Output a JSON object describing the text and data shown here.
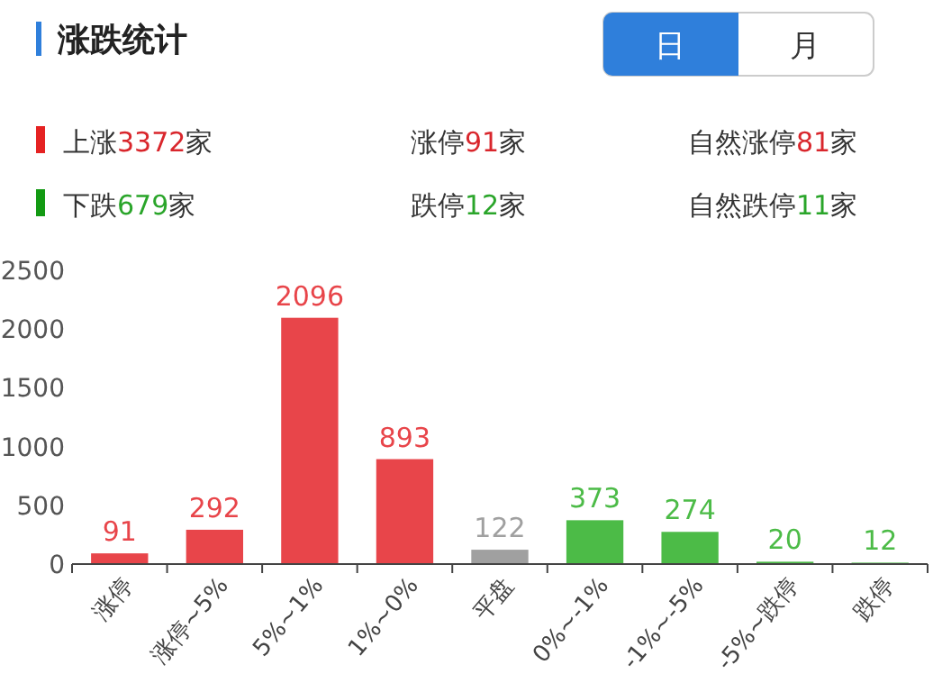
{
  "chart_data": {
    "type": "bar",
    "title": "涨跌统计",
    "annotations": [
      "上涨3372家",
      "涨停91家",
      "自然涨停81家",
      "下跌679家",
      "跌停12家",
      "自然跌停11家",
      "日",
      "月"
    ],
    "categories": [
      "涨停",
      "涨停~5%",
      "5%~1%",
      "1%~0%",
      "平盘",
      "0%~-1%",
      "-1%~-5%",
      "-5%~跌停",
      "跌停"
    ],
    "values": [
      91,
      292,
      2096,
      893,
      122,
      373,
      274,
      20,
      12
    ],
    "colors": [
      "#e8454a",
      "#e8454a",
      "#e8454a",
      "#e8454a",
      "#a0a0a0",
      "#4cbb47",
      "#4cbb47",
      "#4cbb47",
      "#4cbb47"
    ],
    "ylim": [
      0,
      2500
    ],
    "yticks": [
      0,
      500,
      1000,
      1500,
      2000,
      2500
    ],
    "data_labels": true,
    "grid": false
  }
}
